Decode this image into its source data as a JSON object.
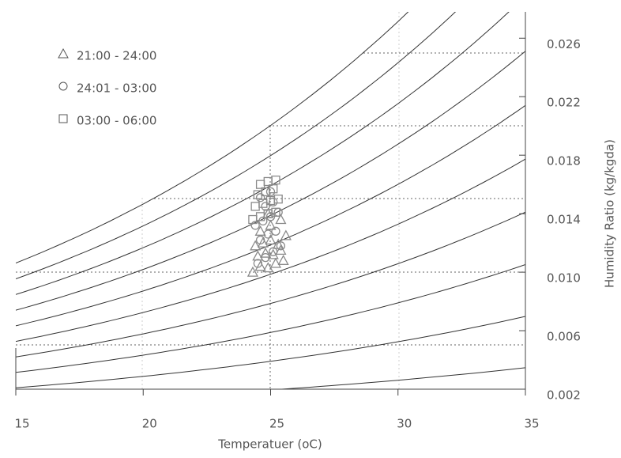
{
  "chart_data": {
    "type": "scatter",
    "x_label": "Temperatuer (oC)",
    "y2_label": "Humidity Ratio (kg/kgda)",
    "xlim": [
      15,
      35
    ],
    "xticks": [
      15,
      20,
      25,
      30,
      35
    ],
    "y2lim": [
      0.002,
      0.0278
    ],
    "y2ticks": [
      0.002,
      0.006,
      {
        "value": 0.01,
        "label": "0.010"
      },
      0.014,
      0.018,
      0.022,
      0.026
    ],
    "legend": "upper left",
    "series": [
      {
        "name": "21:00 - 24:00",
        "marker": "triangle",
        "color": "#8a8a8a",
        "axis": "y2",
        "x": [
          24.3,
          24.6,
          24.9,
          25.2,
          25.5,
          24.5,
          24.8,
          25.1,
          25.4,
          24.4,
          24.7,
          25.0,
          25.3,
          25.6,
          24.6,
          25.0,
          25.4,
          24.9
        ],
        "values": [
          0.01,
          0.0104,
          0.0103,
          0.0106,
          0.0108,
          0.0111,
          0.0113,
          0.0112,
          0.0115,
          0.0118,
          0.012,
          0.0122,
          0.0119,
          0.0125,
          0.0128,
          0.0132,
          0.0136,
          0.014
        ]
      },
      {
        "name": "24:01 - 03:00",
        "marker": "circle",
        "color": "#8a8a8a",
        "axis": "y2",
        "x": [
          24.5,
          24.8,
          25.1,
          25.4,
          24.6,
          24.9,
          25.2,
          24.4,
          24.7,
          25.0,
          25.3,
          24.8,
          25.1,
          24.6,
          25.0
        ],
        "values": [
          0.0106,
          0.011,
          0.0114,
          0.0118,
          0.0122,
          0.0126,
          0.0128,
          0.0132,
          0.0135,
          0.0138,
          0.0141,
          0.0145,
          0.0148,
          0.0151,
          0.0155
        ]
      },
      {
        "name": "03:00 - 06:00",
        "marker": "square",
        "color": "#8a8a8a",
        "axis": "y2",
        "x": [
          24.3,
          24.6,
          24.9,
          25.2,
          24.4,
          24.7,
          25.0,
          25.3,
          24.5,
          24.8,
          25.1,
          24.6,
          24.9,
          25.2
        ],
        "values": [
          0.0136,
          0.0138,
          0.014,
          0.0141,
          0.0145,
          0.0147,
          0.0149,
          0.015,
          0.0153,
          0.0155,
          0.0157,
          0.016,
          0.0162,
          0.0163
        ]
      }
    ]
  }
}
